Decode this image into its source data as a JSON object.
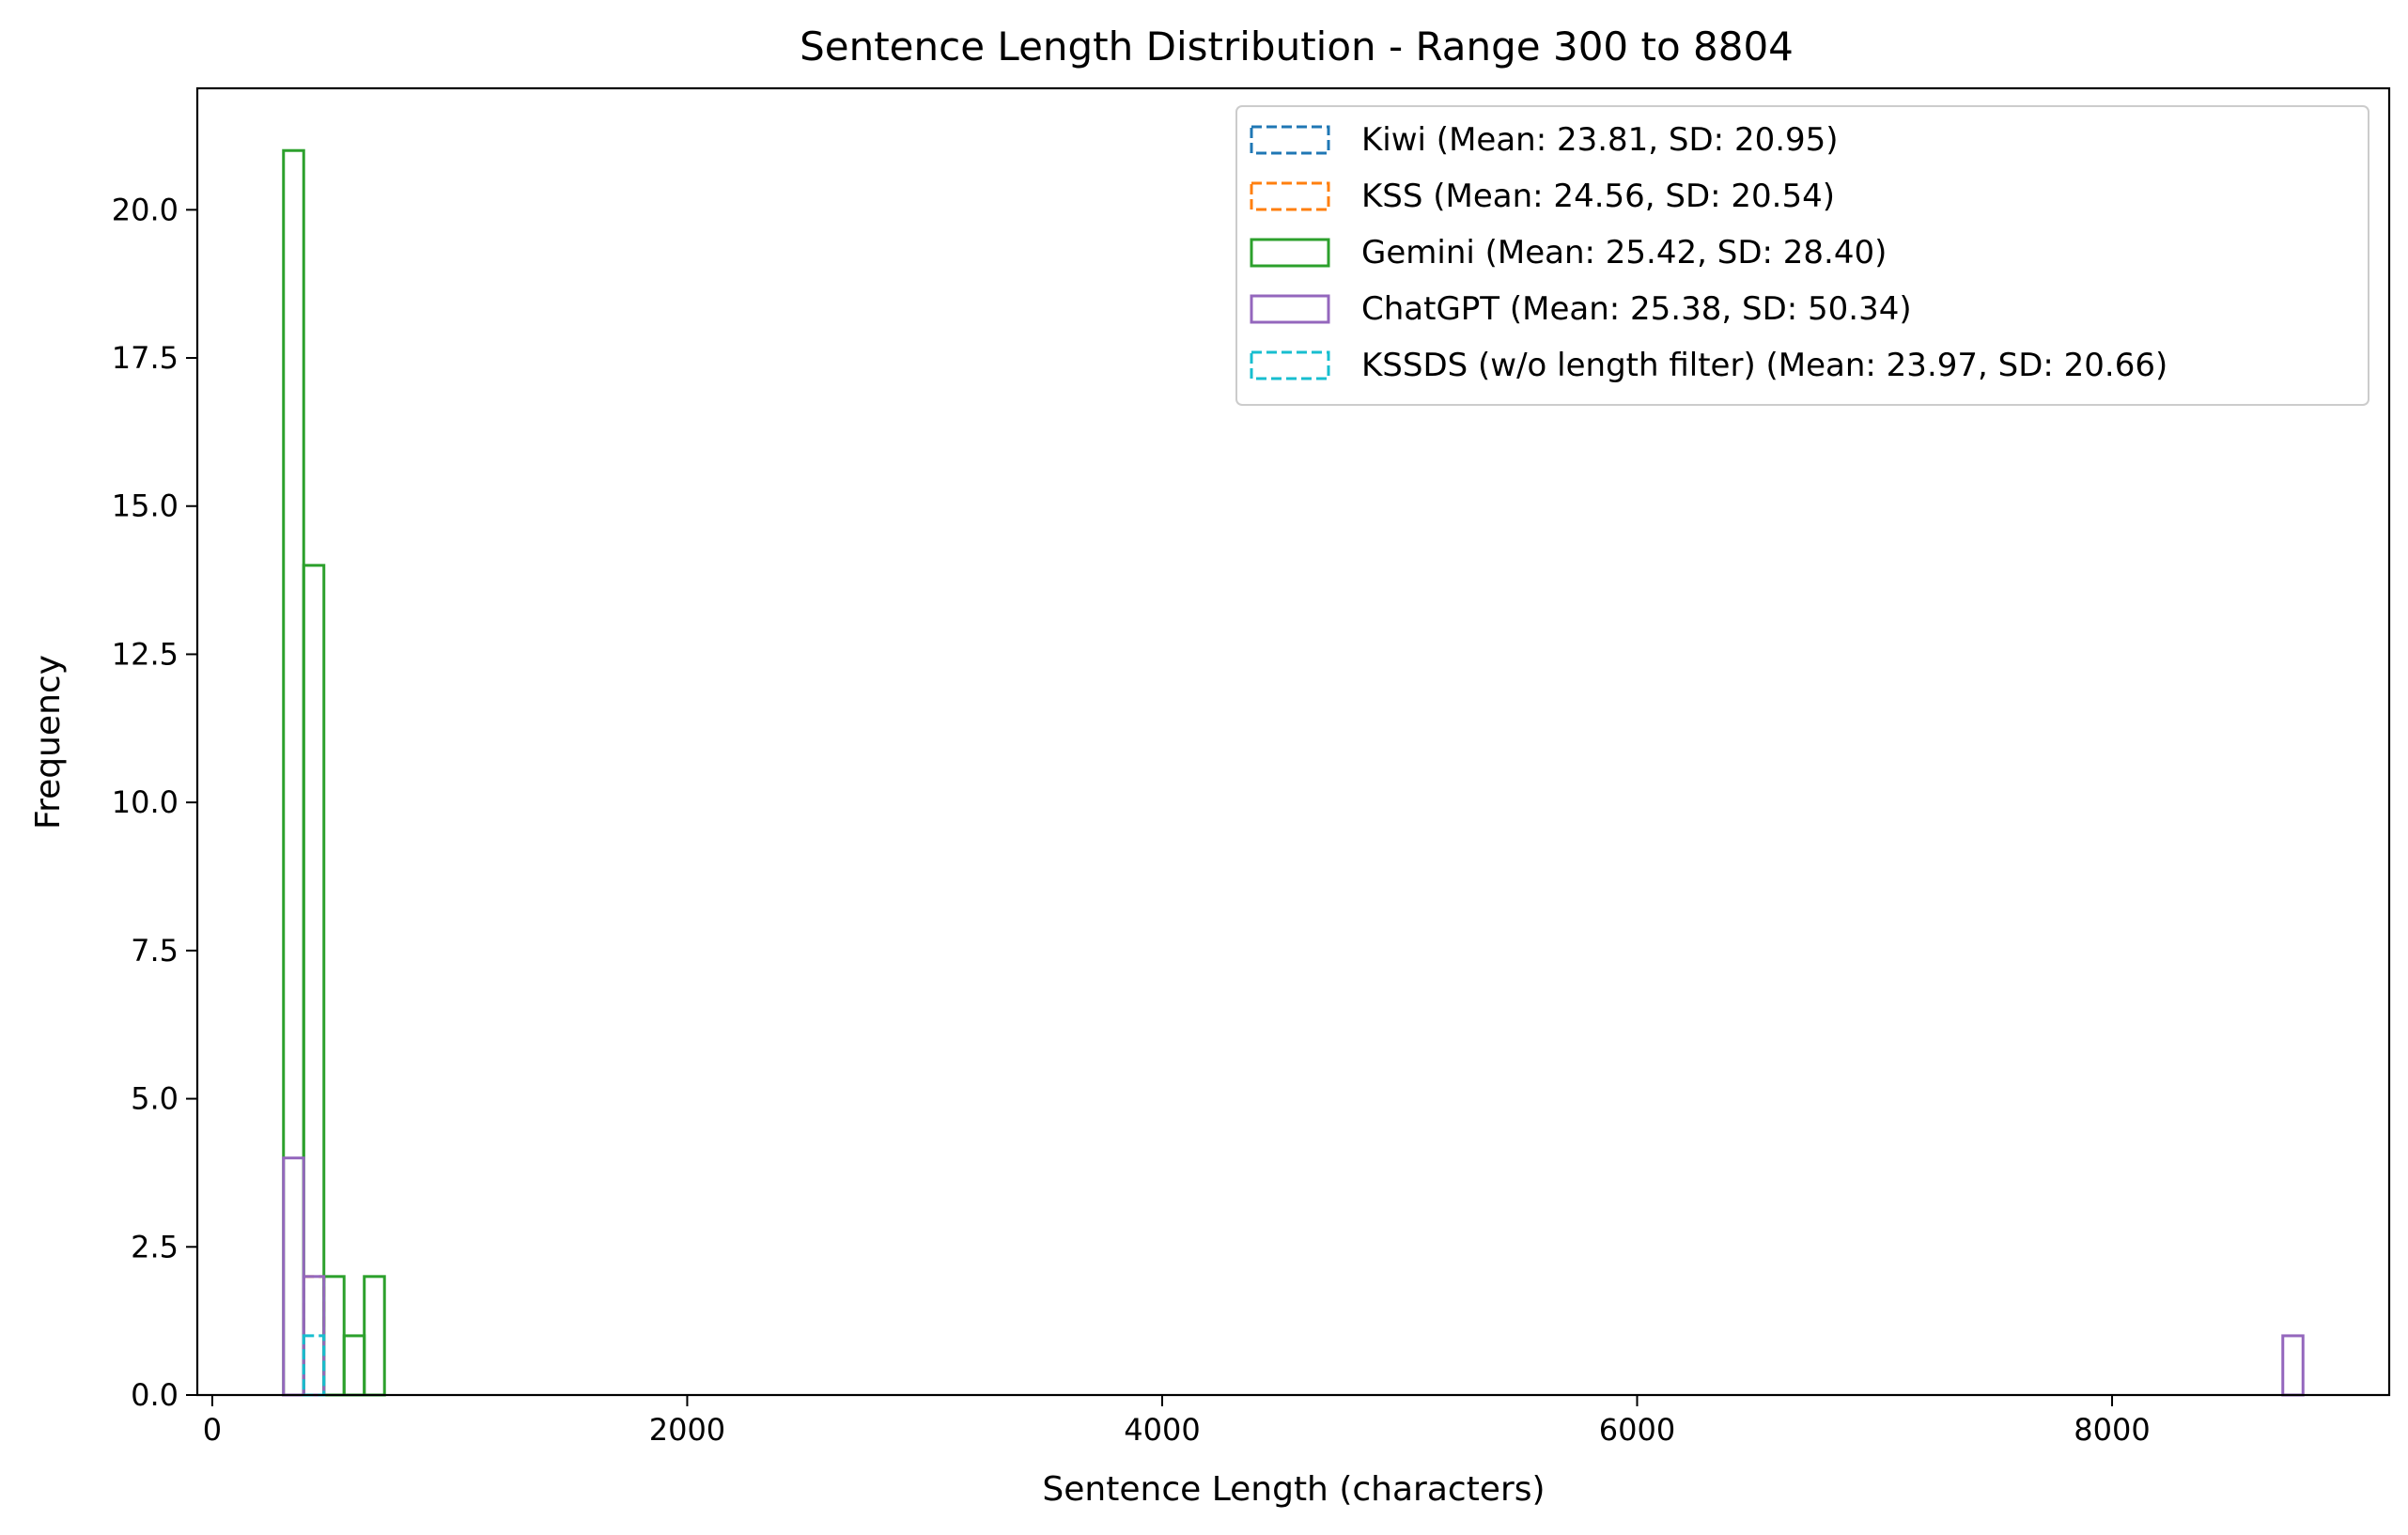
{
  "chart_data": {
    "type": "histogram",
    "title": "Sentence Length Distribution - Range 300 to 8804",
    "xlabel": "Sentence Length (characters)",
    "ylabel": "Frequency",
    "xlim": [
      -63,
      9167
    ],
    "ylim": [
      0,
      22.05
    ],
    "xticks": [
      0,
      2000,
      4000,
      6000,
      8000
    ],
    "xtick_labels": [
      "0",
      "2000",
      "4000",
      "6000",
      "8000"
    ],
    "yticks": [
      0,
      2.5,
      5,
      7.5,
      10,
      12.5,
      15,
      17.5,
      20
    ],
    "ytick_labels": [
      "0.0",
      "2.5",
      "5.0",
      "7.5",
      "10.0",
      "12.5",
      "15.0",
      "17.5",
      "20.0"
    ],
    "bin_range": [
      300,
      8804
    ],
    "bin_width": 85.04,
    "grid": false,
    "legend_position": "top-right",
    "series": [
      {
        "name": "Kiwi (Mean: 23.81, SD: 20.95)",
        "color": "#1f77b4",
        "dashed": true,
        "bins": []
      },
      {
        "name": "KSS (Mean: 24.56, SD: 20.54)",
        "color": "#ff7f0e",
        "dashed": true,
        "bins": [
          {
            "bin": 1,
            "count": 2
          }
        ]
      },
      {
        "name": "Gemini (Mean: 25.42, SD: 28.40)",
        "color": "#2ca02c",
        "dashed": false,
        "bins": [
          {
            "bin": 0,
            "count": 21
          },
          {
            "bin": 1,
            "count": 14
          },
          {
            "bin": 2,
            "count": 2
          },
          {
            "bin": 3,
            "count": 1
          },
          {
            "bin": 4,
            "count": 2
          }
        ]
      },
      {
        "name": "ChatGPT (Mean: 25.38, SD: 50.34)",
        "color": "#9467bd",
        "dashed": false,
        "bins": [
          {
            "bin": 0,
            "count": 4
          },
          {
            "bin": 1,
            "count": 2
          },
          {
            "bin": 99,
            "count": 1
          }
        ]
      },
      {
        "name": "KSSDS (w/o length filter) (Mean: 23.97, SD: 20.66)",
        "color": "#17becf",
        "dashed": true,
        "bins": [
          {
            "bin": 1,
            "count": 1
          }
        ]
      }
    ]
  }
}
